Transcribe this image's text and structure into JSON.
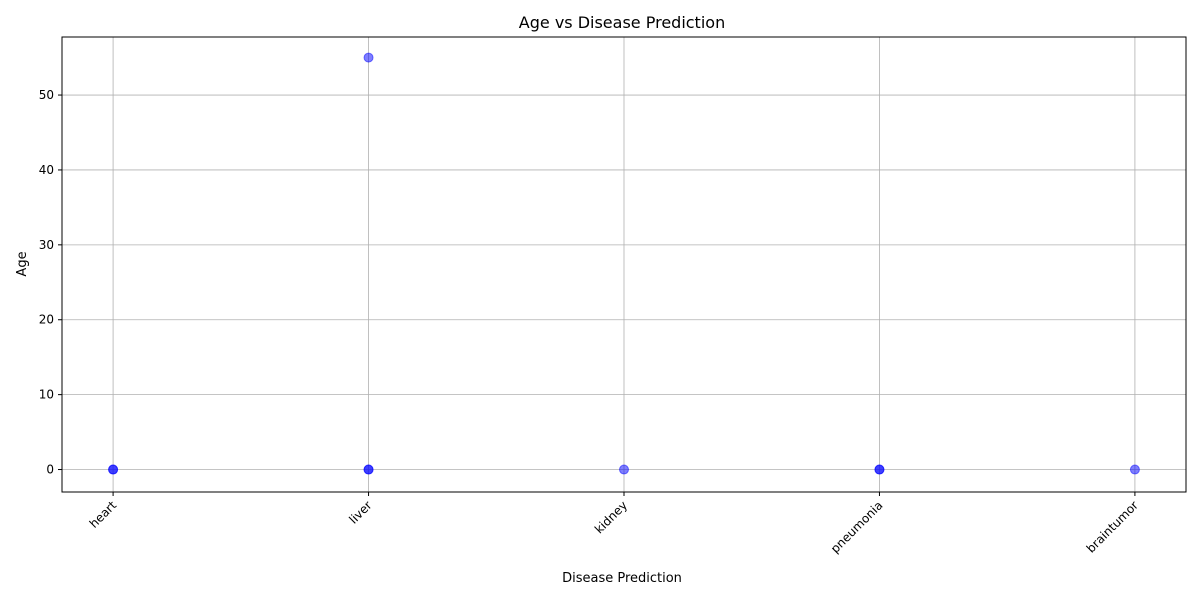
{
  "chart_data": {
    "type": "scatter",
    "title": "Age vs Disease Prediction",
    "xlabel": "Disease Prediction",
    "ylabel": "Age",
    "categories": [
      "heart",
      "liver",
      "kidney",
      "pneumonia",
      "braintumor"
    ],
    "yticks": [
      0,
      10,
      20,
      30,
      40,
      50
    ],
    "ylim": [
      -3,
      57.75
    ],
    "grid": true,
    "marker_color": "#0000ff",
    "marker_alpha": 0.5,
    "points": [
      {
        "x": "heart",
        "y": 0
      },
      {
        "x": "heart",
        "y": 0
      },
      {
        "x": "liver",
        "y": 55
      },
      {
        "x": "liver",
        "y": 0
      },
      {
        "x": "liver",
        "y": 0
      },
      {
        "x": "kidney",
        "y": 0
      },
      {
        "x": "pneumonia",
        "y": 0
      },
      {
        "x": "pneumonia",
        "y": 0
      },
      {
        "x": "braintumor",
        "y": 0
      }
    ]
  }
}
